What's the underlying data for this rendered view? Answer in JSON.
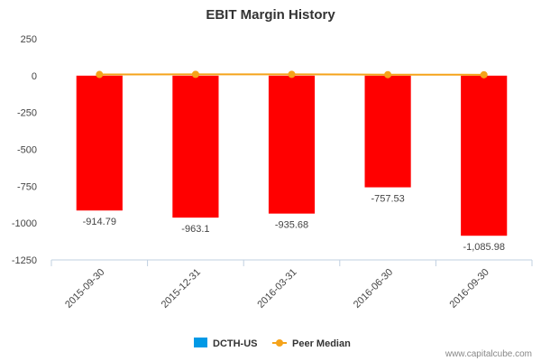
{
  "chart_data": {
    "type": "bar",
    "title": "EBIT Margin History",
    "xlabel": "",
    "ylabel": "",
    "ylim": [
      -1250,
      250
    ],
    "yticks": [
      250,
      0,
      -250,
      -500,
      -750,
      -1000,
      -1250
    ],
    "categories": [
      "2015-09-30",
      "2015-12-31",
      "2016-03-31",
      "2016-06-30",
      "2016-09-30"
    ],
    "series": [
      {
        "name": "DCTH-US",
        "type": "bar",
        "values": [
          -914.79,
          -963.1,
          -935.68,
          -757.53,
          -1085.98
        ],
        "labels": [
          "-914.79",
          "-963.1",
          "-935.68",
          "-757.53",
          "-1,085.98"
        ],
        "color": "#ff0000",
        "legend_color": "#0099e6"
      },
      {
        "name": "Peer Median",
        "type": "line",
        "values": [
          8,
          9,
          9,
          7,
          6
        ],
        "color": "#f5a31a"
      }
    ],
    "legend": "bottom-center",
    "grid": false
  },
  "credit": "www.capitalcube.com"
}
